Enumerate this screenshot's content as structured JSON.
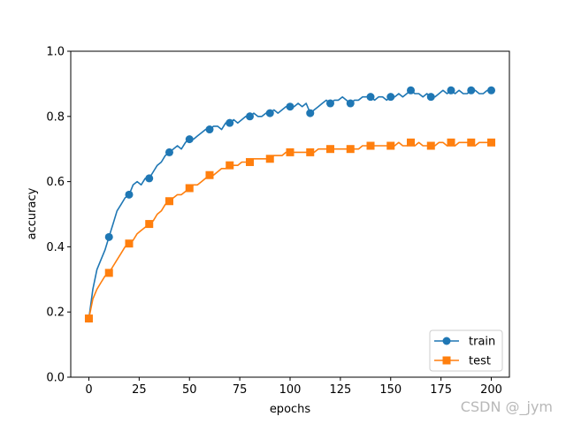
{
  "chart_data": {
    "type": "line",
    "title": "",
    "xlabel": "epochs",
    "ylabel": "accuracy",
    "xlim": [
      -9,
      209
    ],
    "ylim": [
      0.0,
      1.0
    ],
    "xticks": [
      0,
      25,
      50,
      75,
      100,
      125,
      150,
      175,
      200
    ],
    "xtick_labels": [
      "0",
      "25",
      "50",
      "75",
      "100",
      "125",
      "150",
      "175",
      "200"
    ],
    "yticks": [
      0.0,
      0.2,
      0.4,
      0.6,
      0.8,
      1.0
    ],
    "ytick_labels": [
      "0.0",
      "0.2",
      "0.4",
      "0.6",
      "0.8",
      "1.0"
    ],
    "grid": false,
    "legend_position": "lower-right",
    "series": [
      {
        "name": "train",
        "color": "#1f77b4",
        "marker": "circle",
        "markevery": 10,
        "x": [
          0,
          2,
          4,
          6,
          8,
          10,
          12,
          14,
          16,
          18,
          20,
          22,
          24,
          26,
          28,
          30,
          32,
          34,
          36,
          38,
          40,
          42,
          44,
          46,
          48,
          50,
          52,
          54,
          56,
          58,
          60,
          62,
          64,
          66,
          68,
          70,
          72,
          74,
          76,
          78,
          80,
          82,
          84,
          86,
          88,
          90,
          92,
          94,
          96,
          98,
          100,
          102,
          104,
          106,
          108,
          110,
          112,
          114,
          116,
          118,
          120,
          122,
          124,
          126,
          128,
          130,
          132,
          134,
          136,
          138,
          140,
          142,
          144,
          146,
          148,
          150,
          152,
          154,
          156,
          158,
          160,
          162,
          164,
          166,
          168,
          170,
          172,
          174,
          176,
          178,
          180,
          182,
          184,
          186,
          188,
          190,
          192,
          194,
          196,
          198,
          200
        ],
        "y": [
          0.18,
          0.27,
          0.33,
          0.36,
          0.39,
          0.43,
          0.47,
          0.51,
          0.53,
          0.55,
          0.56,
          0.59,
          0.6,
          0.59,
          0.61,
          0.61,
          0.63,
          0.65,
          0.66,
          0.68,
          0.69,
          0.7,
          0.71,
          0.7,
          0.72,
          0.73,
          0.73,
          0.74,
          0.75,
          0.76,
          0.76,
          0.77,
          0.77,
          0.76,
          0.78,
          0.78,
          0.79,
          0.78,
          0.79,
          0.8,
          0.8,
          0.81,
          0.8,
          0.8,
          0.81,
          0.81,
          0.82,
          0.81,
          0.82,
          0.83,
          0.83,
          0.83,
          0.84,
          0.83,
          0.84,
          0.81,
          0.82,
          0.83,
          0.84,
          0.85,
          0.84,
          0.85,
          0.85,
          0.86,
          0.85,
          0.84,
          0.85,
          0.85,
          0.86,
          0.86,
          0.86,
          0.85,
          0.86,
          0.86,
          0.85,
          0.86,
          0.86,
          0.87,
          0.86,
          0.87,
          0.88,
          0.87,
          0.87,
          0.86,
          0.87,
          0.86,
          0.86,
          0.87,
          0.88,
          0.87,
          0.88,
          0.87,
          0.88,
          0.87,
          0.87,
          0.88,
          0.88,
          0.87,
          0.87,
          0.88,
          0.88
        ]
      },
      {
        "name": "test",
        "color": "#ff7f0e",
        "marker": "square",
        "markevery": 10,
        "x": [
          0,
          2,
          4,
          6,
          8,
          10,
          12,
          14,
          16,
          18,
          20,
          22,
          24,
          26,
          28,
          30,
          32,
          34,
          36,
          38,
          40,
          42,
          44,
          46,
          48,
          50,
          52,
          54,
          56,
          58,
          60,
          62,
          64,
          66,
          68,
          70,
          72,
          74,
          76,
          78,
          80,
          82,
          84,
          86,
          88,
          90,
          92,
          94,
          96,
          98,
          100,
          102,
          104,
          106,
          108,
          110,
          112,
          114,
          116,
          118,
          120,
          122,
          124,
          126,
          128,
          130,
          132,
          134,
          136,
          138,
          140,
          142,
          144,
          146,
          148,
          150,
          152,
          154,
          156,
          158,
          160,
          162,
          164,
          166,
          168,
          170,
          172,
          174,
          176,
          178,
          180,
          182,
          184,
          186,
          188,
          190,
          192,
          194,
          196,
          198,
          200
        ],
        "y": [
          0.18,
          0.24,
          0.27,
          0.29,
          0.31,
          0.32,
          0.34,
          0.36,
          0.38,
          0.4,
          0.41,
          0.42,
          0.44,
          0.45,
          0.46,
          0.47,
          0.48,
          0.5,
          0.51,
          0.53,
          0.54,
          0.55,
          0.56,
          0.56,
          0.57,
          0.58,
          0.59,
          0.59,
          0.6,
          0.61,
          0.62,
          0.62,
          0.63,
          0.64,
          0.64,
          0.65,
          0.65,
          0.65,
          0.66,
          0.66,
          0.66,
          0.67,
          0.67,
          0.67,
          0.67,
          0.67,
          0.68,
          0.68,
          0.68,
          0.69,
          0.69,
          0.69,
          0.69,
          0.69,
          0.69,
          0.69,
          0.69,
          0.7,
          0.7,
          0.7,
          0.7,
          0.7,
          0.7,
          0.7,
          0.7,
          0.7,
          0.7,
          0.7,
          0.71,
          0.71,
          0.71,
          0.71,
          0.71,
          0.71,
          0.71,
          0.71,
          0.71,
          0.72,
          0.71,
          0.71,
          0.72,
          0.71,
          0.72,
          0.71,
          0.71,
          0.71,
          0.71,
          0.72,
          0.72,
          0.71,
          0.72,
          0.71,
          0.72,
          0.72,
          0.72,
          0.72,
          0.71,
          0.72,
          0.72,
          0.72,
          0.72
        ]
      }
    ]
  },
  "watermark": "CSDN @_jym"
}
